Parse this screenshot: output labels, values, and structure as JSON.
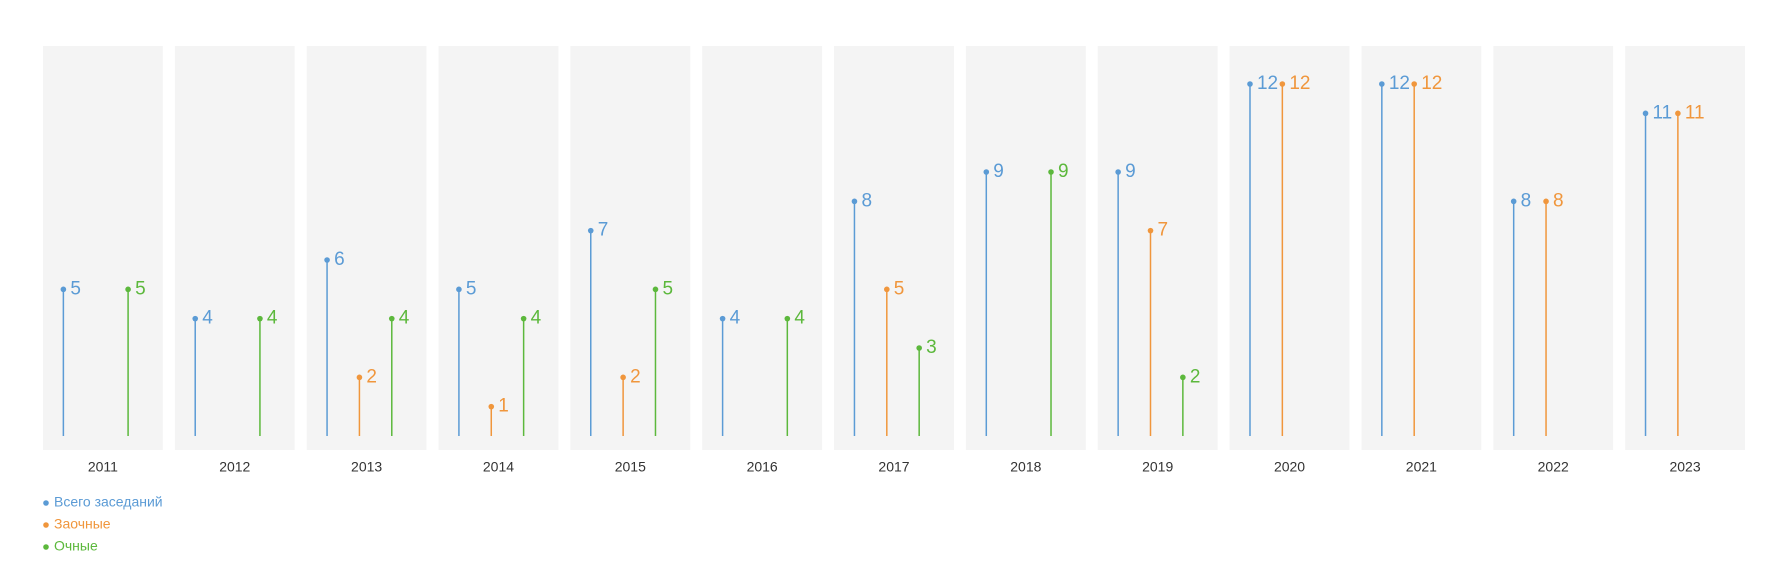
{
  "chart_data": {
    "type": "lollipop",
    "categories": [
      "2011",
      "2012",
      "2013",
      "2014",
      "2015",
      "2016",
      "2017",
      "2018",
      "2019",
      "2020",
      "2021",
      "2022",
      "2023"
    ],
    "series": [
      {
        "name": "Всего заседаний",
        "color": "#5b9bd5",
        "values": [
          5,
          4,
          6,
          5,
          7,
          4,
          8,
          9,
          9,
          12,
          12,
          8,
          11
        ]
      },
      {
        "name": "Заочные",
        "color": "#f0963c",
        "values": [
          null,
          null,
          2,
          1,
          2,
          null,
          5,
          null,
          7,
          12,
          12,
          8,
          11
        ]
      },
      {
        "name": "Очные",
        "color": "#5cb83c",
        "values": [
          5,
          4,
          4,
          4,
          5,
          4,
          3,
          9,
          2,
          null,
          null,
          null,
          null
        ]
      }
    ],
    "legend": "bottom-left"
  }
}
